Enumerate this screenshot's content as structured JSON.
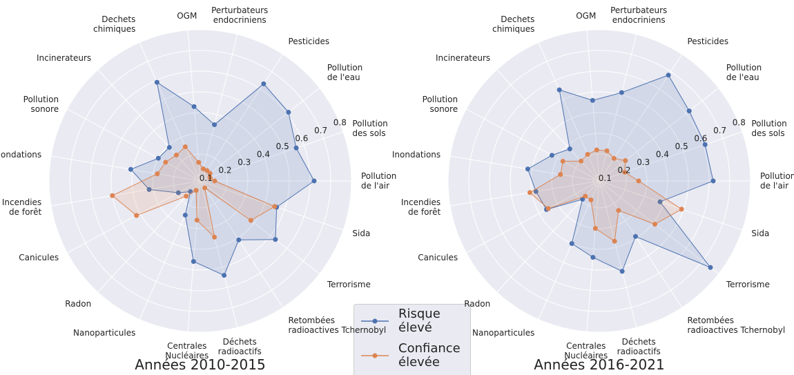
{
  "chart_data": [
    {
      "type": "radar",
      "title": "Années 2010-2015",
      "categories": [
        "Pollution\nde l'air",
        "Pollution\ndes sols",
        "Pollution\nde l'eau",
        "Pesticides",
        "Perturbateurs\nendocriniens",
        "OGM",
        "Dechets\nchimiques",
        "Incinerateurs",
        "Pollution\nsonore",
        "Inondations",
        "Incendies\nde forêt",
        "Canicules",
        "Radon",
        "Nanoparticules",
        "Centrales\nNucléaires",
        "Déchets\nradioactifs",
        "Retombées\nradioactives Tchernobyl",
        "Terrorisme",
        "Sida"
      ],
      "series": [
        {
          "name": "Risque\nélevé",
          "color": "#4c72b0",
          "values": [
            0.62,
            0.56,
            0.61,
            0.63,
            0.35,
            0.43,
            0.59,
            0.29,
            0.3,
            0.41,
            0.32,
            0.19,
            0.14,
            0.25,
            0.46,
            0.54,
            0.41,
            0.53,
            0.46
          ]
        },
        {
          "name": "Confiance\nélevée",
          "color": "#dd8452",
          "values": [
            0.14,
            0.12,
            0.13,
            0.13,
            0.13,
            0.16,
            0.25,
            0.24,
            0.26,
            0.28,
            0.5,
            0.42,
            0.17,
            0.12,
            0.26,
            0.35,
            0.11,
            0.38,
            0.45
          ]
        }
      ],
      "ylim": [
        0.07,
        0.8
      ],
      "yticks": [
        0.1,
        0.2,
        0.3,
        0.4,
        0.5,
        0.6,
        0.7,
        0.8
      ],
      "grid": true
    },
    {
      "type": "radar",
      "title": "Années 2016-2021",
      "categories": [
        "Pollution\nde l'air",
        "Pollution\ndes sols",
        "Pollution\nde l'eau",
        "Pesticides",
        "Perturbateurs\nendocriniens",
        "OGM",
        "Dechets\nchimiques",
        "Incinerateurs",
        "Pollution\nsonore",
        "Inondations",
        "Incendies\nde forêt",
        "Canicules",
        "Radon",
        "Nanoparticules",
        "Centrales\nNucléaires",
        "Déchets\nradioactifs",
        "Retombées\nradioactives Tchernobyl",
        "Terrorisme",
        "Sida"
      ],
      "series": [
        {
          "color": "#4c72b0",
          "values": [
            0.62,
            0.61,
            0.62,
            0.68,
            0.51,
            0.46,
            0.55,
            0.28,
            0.33,
            0.42,
            0.38,
            0.36,
            0.19,
            0.4,
            0.44,
            0.52,
            0.39,
            0.75,
            0.38
          ]
        },
        {
          "color": "#dd8452",
          "values": [
            0.26,
            0.2,
            0.23,
            0.2,
            0.22,
            0.22,
            0.21,
            0.2,
            0.27,
            0.26,
            0.41,
            0.35,
            0.17,
            0.17,
            0.3,
            0.37,
            0.24,
            0.41,
            0.49
          ]
        }
      ],
      "ylim": [
        0.07,
        0.8
      ],
      "yticks": [
        0.1,
        0.2,
        0.3,
        0.4,
        0.5,
        0.6,
        0.7,
        0.8
      ],
      "grid": true
    }
  ]
}
